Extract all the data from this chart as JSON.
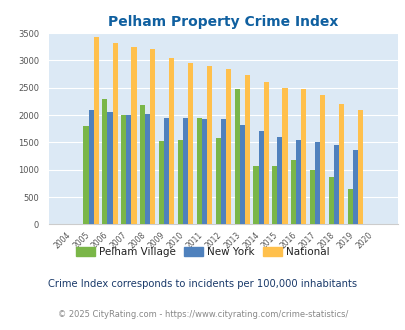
{
  "title": "Pelham Property Crime Index",
  "years": [
    2004,
    2005,
    2006,
    2007,
    2008,
    2009,
    2010,
    2011,
    2012,
    2013,
    2014,
    2015,
    2016,
    2017,
    2018,
    2019,
    2020
  ],
  "pelham_village": [
    0,
    1800,
    2300,
    2000,
    2175,
    1525,
    1550,
    1950,
    1575,
    2475,
    1075,
    1075,
    1175,
    1000,
    875,
    650,
    0
  ],
  "new_york": [
    0,
    2100,
    2050,
    2000,
    2025,
    1950,
    1950,
    1925,
    1925,
    1825,
    1700,
    1600,
    1550,
    1500,
    1450,
    1360,
    0
  ],
  "national": [
    0,
    3425,
    3325,
    3250,
    3200,
    3050,
    2950,
    2900,
    2850,
    2725,
    2600,
    2500,
    2475,
    2375,
    2200,
    2100,
    0
  ],
  "pelham_color": "#7ab648",
  "newyork_color": "#4f81bd",
  "national_color": "#ffc04c",
  "bg_color": "#dce9f5",
  "title_color": "#1060a0",
  "ylabel_max": 3500,
  "yticks": [
    0,
    500,
    1000,
    1500,
    2000,
    2500,
    3000,
    3500
  ],
  "subtitle": "Crime Index corresponds to incidents per 100,000 inhabitants",
  "footer": "© 2025 CityRating.com - https://www.cityrating.com/crime-statistics/",
  "legend_labels": [
    "Pelham Village",
    "New York",
    "National"
  ],
  "subtitle_color": "#1a3a6a",
  "footer_color": "#888888",
  "url_color": "#1060a0"
}
